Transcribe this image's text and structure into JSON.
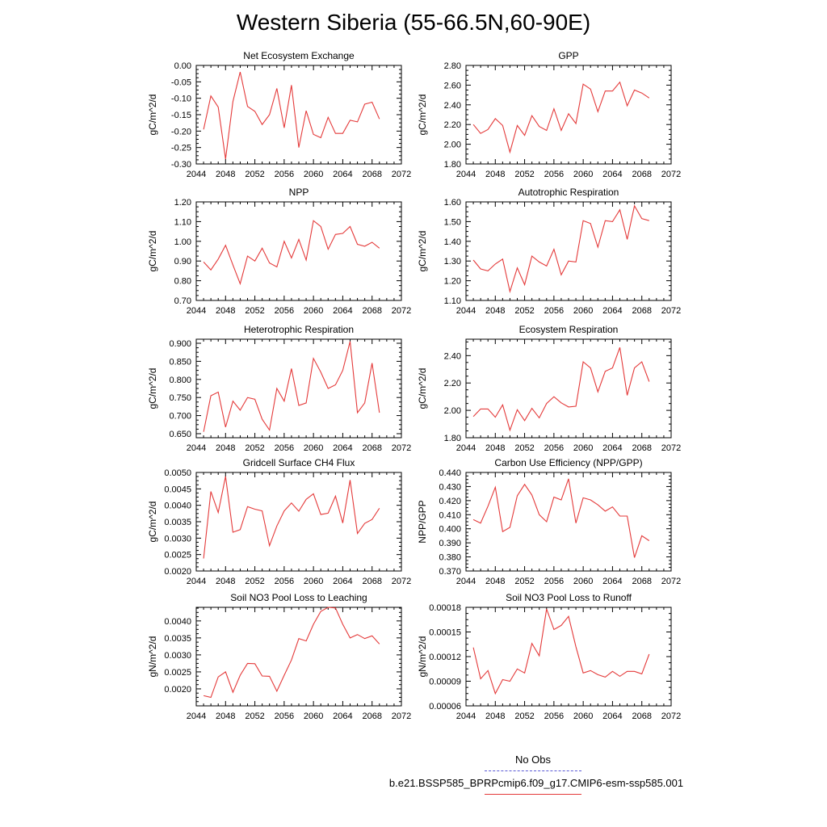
{
  "title": "Western Siberia (55-66.5N,60-90E)",
  "legend": {
    "obs_label": "No Obs",
    "obs_color": "#5a5ad6",
    "run_label": "b.e21.BSSP585_BPRPcmip6.f09_g17.CMIP6-esm-ssp585.001",
    "run_color": "#e43a3a"
  },
  "chart_data": [
    {
      "type": "line",
      "title": "Net Ecosystem Exchange",
      "ylabel": "gC/m^2/d",
      "xlim": [
        2044,
        2072
      ],
      "ylim": [
        -0.3,
        0.0
      ],
      "xticks": [
        "2044",
        "2048",
        "2052",
        "2056",
        "2060",
        "2064",
        "2068",
        "2072"
      ],
      "yticks": [
        "0.00",
        "-0.05",
        "-0.10",
        "-0.15",
        "-0.20",
        "-0.25",
        "-0.30"
      ],
      "x": [
        2045,
        2046,
        2047,
        2048,
        2049,
        2050,
        2051,
        2052,
        2053,
        2054,
        2055,
        2056,
        2057,
        2058,
        2059,
        2060,
        2061,
        2062,
        2063,
        2064,
        2065,
        2066,
        2067,
        2068,
        2069
      ],
      "values": [
        -0.195,
        -0.093,
        -0.127,
        -0.285,
        -0.11,
        -0.02,
        -0.125,
        -0.14,
        -0.18,
        -0.15,
        -0.07,
        -0.19,
        -0.06,
        -0.25,
        -0.138,
        -0.21,
        -0.22,
        -0.158,
        -0.207,
        -0.207,
        -0.167,
        -0.172,
        -0.118,
        -0.112,
        -0.163
      ]
    },
    {
      "type": "line",
      "title": "GPP",
      "ylabel": "gC/m^2/d",
      "xlim": [
        2044,
        2072
      ],
      "ylim": [
        1.8,
        2.8
      ],
      "xticks": [
        "2044",
        "2048",
        "2052",
        "2056",
        "2060",
        "2064",
        "2068",
        "2072"
      ],
      "yticks": [
        "2.80",
        "2.60",
        "2.40",
        "2.20",
        "2.00",
        "1.80"
      ],
      "x": [
        2045,
        2046,
        2047,
        2048,
        2049,
        2050,
        2051,
        2052,
        2053,
        2054,
        2055,
        2056,
        2057,
        2058,
        2059,
        2060,
        2061,
        2062,
        2063,
        2064,
        2065,
        2066,
        2067,
        2068,
        2069
      ],
      "values": [
        2.2,
        2.11,
        2.15,
        2.26,
        2.19,
        1.92,
        2.19,
        2.09,
        2.29,
        2.18,
        2.14,
        2.36,
        2.14,
        2.31,
        2.21,
        2.61,
        2.56,
        2.33,
        2.54,
        2.54,
        2.63,
        2.39,
        2.55,
        2.52,
        2.47
      ]
    },
    {
      "type": "line",
      "title": "NPP",
      "ylabel": "gC/m^2/d",
      "xlim": [
        2044,
        2072
      ],
      "ylim": [
        0.7,
        1.2
      ],
      "xticks": [
        "2044",
        "2048",
        "2052",
        "2056",
        "2060",
        "2064",
        "2068",
        "2072"
      ],
      "yticks": [
        "1.20",
        "1.10",
        "1.00",
        "0.90",
        "0.80",
        "0.70"
      ],
      "x": [
        2045,
        2046,
        2047,
        2048,
        2049,
        2050,
        2051,
        2052,
        2053,
        2054,
        2055,
        2056,
        2057,
        2058,
        2059,
        2060,
        2061,
        2062,
        2063,
        2064,
        2065,
        2066,
        2067,
        2068,
        2069
      ],
      "values": [
        0.895,
        0.855,
        0.91,
        0.98,
        0.88,
        0.785,
        0.925,
        0.9,
        0.965,
        0.89,
        0.87,
        1.0,
        0.915,
        1.01,
        0.905,
        1.105,
        1.075,
        0.96,
        1.035,
        1.04,
        1.075,
        0.985,
        0.975,
        0.995,
        0.965
      ]
    },
    {
      "type": "line",
      "title": "Autotrophic Respiration",
      "ylabel": "gC/m^2/d",
      "xlim": [
        2044,
        2072
      ],
      "ylim": [
        1.1,
        1.6
      ],
      "xticks": [
        "2044",
        "2048",
        "2052",
        "2056",
        "2060",
        "2064",
        "2068",
        "2072"
      ],
      "yticks": [
        "1.60",
        "1.50",
        "1.40",
        "1.30",
        "1.20",
        "1.10"
      ],
      "x": [
        2045,
        2046,
        2047,
        2048,
        2049,
        2050,
        2051,
        2052,
        2053,
        2054,
        2055,
        2056,
        2057,
        2058,
        2059,
        2060,
        2061,
        2062,
        2063,
        2064,
        2065,
        2066,
        2067,
        2068,
        2069
      ],
      "values": [
        1.305,
        1.26,
        1.25,
        1.285,
        1.31,
        1.145,
        1.265,
        1.18,
        1.325,
        1.295,
        1.275,
        1.36,
        1.23,
        1.3,
        1.295,
        1.505,
        1.49,
        1.37,
        1.505,
        1.5,
        1.56,
        1.41,
        1.58,
        1.515,
        1.505
      ]
    },
    {
      "type": "line",
      "title": "Heterotrophic Respiration",
      "ylabel": "gC/m^2/d",
      "xlim": [
        2044,
        2072
      ],
      "ylim": [
        0.6388,
        0.9112
      ],
      "xticks": [
        "2044",
        "2048",
        "2052",
        "2056",
        "2060",
        "2064",
        "2068",
        "2072"
      ],
      "yticks": [
        "0.900",
        "0.850",
        "0.800",
        "0.750",
        "0.700",
        "0.650"
      ],
      "x": [
        2045,
        2046,
        2047,
        2048,
        2049,
        2050,
        2051,
        2052,
        2053,
        2054,
        2055,
        2056,
        2057,
        2058,
        2059,
        2060,
        2061,
        2062,
        2063,
        2064,
        2065,
        2066,
        2067,
        2068,
        2069
      ],
      "values": [
        0.655,
        0.755,
        0.765,
        0.668,
        0.74,
        0.715,
        0.75,
        0.745,
        0.69,
        0.66,
        0.775,
        0.74,
        0.83,
        0.728,
        0.735,
        0.858,
        0.82,
        0.775,
        0.785,
        0.825,
        0.905,
        0.708,
        0.735,
        0.845,
        0.708
      ]
    },
    {
      "type": "line",
      "title": "Ecosystem Respiration",
      "ylabel": "gC/m^2/d",
      "xlim": [
        2044,
        2072
      ],
      "ylim": [
        1.8,
        2.52
      ],
      "xticks": [
        "2044",
        "2048",
        "2052",
        "2056",
        "2060",
        "2064",
        "2068",
        "2072"
      ],
      "yticks": [
        "2.40",
        "2.20",
        "2.00",
        "1.80"
      ],
      "x": [
        2045,
        2046,
        2047,
        2048,
        2049,
        2050,
        2051,
        2052,
        2053,
        2054,
        2055,
        2056,
        2057,
        2058,
        2059,
        2060,
        2061,
        2062,
        2063,
        2064,
        2065,
        2066,
        2067,
        2068,
        2069
      ],
      "values": [
        1.955,
        2.01,
        2.01,
        1.95,
        2.04,
        1.855,
        2.005,
        1.925,
        2.015,
        1.945,
        2.05,
        2.1,
        2.055,
        2.025,
        2.03,
        2.355,
        2.31,
        2.135,
        2.285,
        2.31,
        2.46,
        2.11,
        2.31,
        2.355,
        2.21
      ]
    },
    {
      "type": "line",
      "title": "Gridcell Surface CH4 Flux",
      "ylabel": "gC/m^2/d",
      "xlim": [
        2044,
        2072
      ],
      "ylim": [
        0.002,
        0.005
      ],
      "xticks": [
        "2044",
        "2048",
        "2052",
        "2056",
        "2060",
        "2064",
        "2068",
        "2072"
      ],
      "yticks": [
        "0.0050",
        "0.0045",
        "0.0040",
        "0.0035",
        "0.0030",
        "0.0025",
        "0.0020"
      ],
      "x": [
        2045,
        2046,
        2047,
        2048,
        2049,
        2050,
        2051,
        2052,
        2053,
        2054,
        2055,
        2056,
        2057,
        2058,
        2059,
        2060,
        2061,
        2062,
        2063,
        2064,
        2065,
        2066,
        2067,
        2068,
        2069
      ],
      "values": [
        0.00238,
        0.00442,
        0.00378,
        0.00488,
        0.00318,
        0.00326,
        0.00396,
        0.00388,
        0.00383,
        0.00277,
        0.00337,
        0.00383,
        0.00407,
        0.00382,
        0.00418,
        0.00435,
        0.00372,
        0.00376,
        0.00428,
        0.00346,
        0.00477,
        0.00314,
        0.00345,
        0.00357,
        0.00391
      ]
    },
    {
      "type": "line",
      "title": "Carbon Use Efficiency (NPP/GPP)",
      "ylabel": "NPP/GPP",
      "xlim": [
        2044,
        2072
      ],
      "ylim": [
        0.37,
        0.44
      ],
      "xticks": [
        "2044",
        "2048",
        "2052",
        "2056",
        "2060",
        "2064",
        "2068",
        "2072"
      ],
      "yticks": [
        "0.440",
        "0.430",
        "0.420",
        "0.410",
        "0.400",
        "0.390",
        "0.380",
        "0.370"
      ],
      "x": [
        2045,
        2046,
        2047,
        2048,
        2049,
        2050,
        2051,
        2052,
        2053,
        2054,
        2055,
        2056,
        2057,
        2058,
        2059,
        2060,
        2061,
        2062,
        2063,
        2064,
        2065,
        2066,
        2067,
        2068,
        2069
      ],
      "values": [
        0.4065,
        0.404,
        0.416,
        0.4295,
        0.398,
        0.401,
        0.4235,
        0.4315,
        0.424,
        0.41,
        0.405,
        0.4225,
        0.4205,
        0.4355,
        0.404,
        0.422,
        0.4205,
        0.417,
        0.4125,
        0.4155,
        0.409,
        0.409,
        0.3795,
        0.395,
        0.3915
      ]
    },
    {
      "type": "line",
      "title": "Soil NO3 Pool Loss to Leaching",
      "ylabel": "gN/m^2/d",
      "xlim": [
        2044,
        2072
      ],
      "ylim": [
        0.0015,
        0.0044
      ],
      "xticks": [
        "2044",
        "2048",
        "2052",
        "2056",
        "2060",
        "2064",
        "2068",
        "2072"
      ],
      "yticks": [
        "0.0040",
        "0.0035",
        "0.0030",
        "0.0025",
        "0.0020"
      ],
      "x": [
        2045,
        2046,
        2047,
        2048,
        2049,
        2050,
        2051,
        2052,
        2053,
        2054,
        2055,
        2056,
        2057,
        2058,
        2059,
        2060,
        2061,
        2062,
        2063,
        2064,
        2065,
        2066,
        2067,
        2068,
        2069
      ],
      "values": [
        0.0018,
        0.00175,
        0.00235,
        0.0025,
        0.0019,
        0.0024,
        0.00275,
        0.00274,
        0.00238,
        0.00237,
        0.00193,
        0.0024,
        0.00285,
        0.00348,
        0.00341,
        0.0039,
        0.00428,
        0.0044,
        0.00438,
        0.0039,
        0.0035,
        0.0036,
        0.00348,
        0.00356,
        0.00332
      ]
    },
    {
      "type": "line",
      "title": "Soil NO3 Pool Loss to Runoff",
      "ylabel": "gN/m^2/d",
      "xlim": [
        2044,
        2072
      ],
      "ylim": [
        6e-05,
        0.00018
      ],
      "xticks": [
        "2044",
        "2048",
        "2052",
        "2056",
        "2060",
        "2064",
        "2068",
        "2072"
      ],
      "yticks": [
        "0.00018",
        "0.00015",
        "0.00012",
        "0.00009",
        "0.00006"
      ],
      "x": [
        2045,
        2046,
        2047,
        2048,
        2049,
        2050,
        2051,
        2052,
        2053,
        2054,
        2055,
        2056,
        2057,
        2058,
        2059,
        2060,
        2061,
        2062,
        2063,
        2064,
        2065,
        2066,
        2067,
        2068,
        2069
      ],
      "values": [
        0.000131,
        9.3e-05,
        0.000103,
        7.5e-05,
        9.2e-05,
        9e-05,
        0.000105,
        0.0001,
        0.000136,
        0.000121,
        0.000178,
        0.000153,
        0.000158,
        0.000169,
        0.000132,
        0.0001,
        0.000103,
        9.8e-05,
        9.5e-05,
        0.000102,
        9.6e-05,
        0.000102,
        0.000102,
        9.9e-05,
        0.000123
      ]
    }
  ]
}
